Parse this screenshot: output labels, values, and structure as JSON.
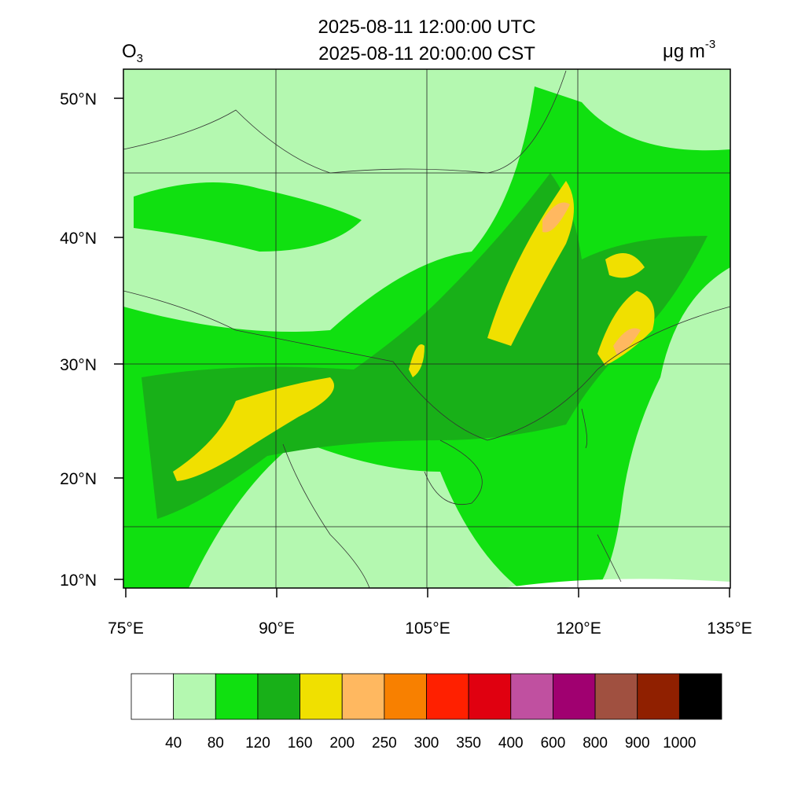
{
  "map": {
    "title_line1": "2025-08-11 12:00:00 UTC",
    "title_line2": "2025-08-11 20:00:00 CST",
    "variable": "O",
    "variable_subscript": "3",
    "units": "μg m",
    "units_superscript": "-3",
    "lat_ticks": [
      {
        "value": 10,
        "label": "10°N"
      },
      {
        "value": 20,
        "label": "20°N"
      },
      {
        "value": 30,
        "label": "30°N"
      },
      {
        "value": 40,
        "label": "40°N"
      },
      {
        "value": 50,
        "label": "50°N"
      }
    ],
    "lon_ticks": [
      {
        "value": 75,
        "label": "75°E"
      },
      {
        "value": 90,
        "label": "90°E"
      },
      {
        "value": 105,
        "label": "105°E"
      },
      {
        "value": 120,
        "label": "120°E"
      },
      {
        "value": 135,
        "label": "135°E"
      }
    ],
    "colorbar": {
      "colors": [
        "#ffffff",
        "#b4f8b0",
        "#10e010",
        "#18b018",
        "#f0e000",
        "#ffb860",
        "#f88000",
        "#ff2000",
        "#e00010",
        "#c050a0",
        "#a00070",
        "#a05040",
        "#902000",
        "#000000"
      ],
      "levels": [
        40,
        80,
        120,
        160,
        200,
        250,
        300,
        350,
        400,
        600,
        800,
        900,
        1000
      ]
    }
  }
}
